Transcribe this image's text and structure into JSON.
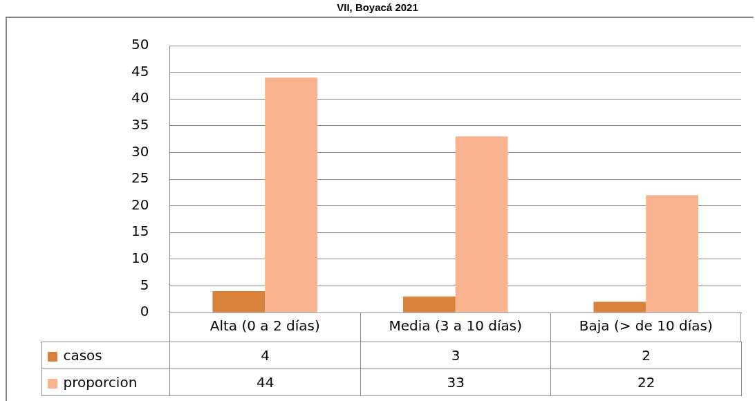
{
  "chart_data": {
    "type": "bar",
    "title": "VII, Boyacá 2021",
    "categories": [
      "Alta (0 a 2 días)",
      "Media (3 a 10 días)",
      "Baja (> de 10 días)"
    ],
    "series": [
      {
        "name": "casos",
        "color": "#d9823b",
        "values": [
          4,
          3,
          2
        ]
      },
      {
        "name": "proporcion",
        "color": "#f9b48f",
        "values": [
          44,
          33,
          22
        ]
      }
    ],
    "ylim": [
      0,
      50
    ],
    "yticks": [
      0,
      5,
      10,
      15,
      20,
      25,
      30,
      35,
      40,
      45,
      50
    ],
    "grid": "y",
    "legend": "bottom left",
    "data_labels": true
  }
}
